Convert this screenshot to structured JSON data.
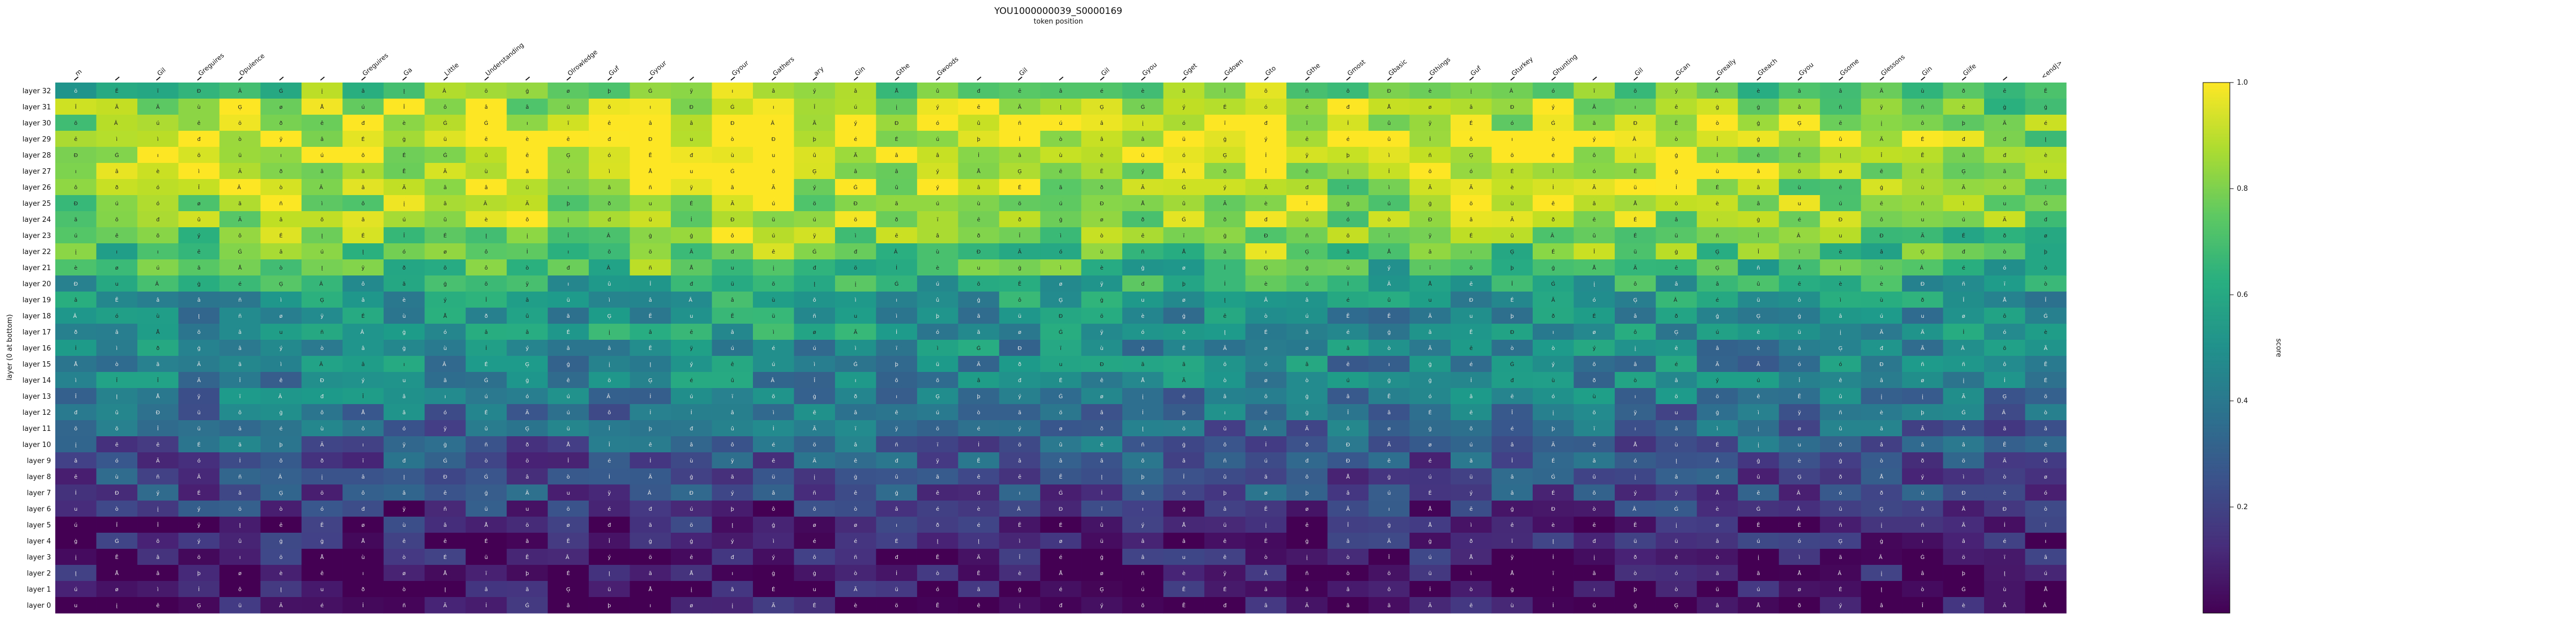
{
  "chart_data": {
    "type": "heatmap",
    "title": "YOU1000000039_S0000169",
    "xlabel": "token position",
    "ylabel": "layer (0 at bottom)",
    "colorbar": {
      "label": "score",
      "range": [
        0,
        1
      ],
      "ticks": [
        "0.2",
        "0.4",
        "0.6",
        "0.8",
        "1.0"
      ],
      "colormap": "viridis"
    },
    "x_tokens": [
      "▁m",
      "▁",
      "▁Gil",
      "▁Greguires",
      "▁Opulence",
      "▁",
      "▁",
      "▁Greguires",
      "▁Ga",
      "▁Little",
      "▁Understanding",
      "▁",
      "▁Olrowledge",
      "▁Guf",
      "▁Gyour",
      "▁",
      "▁Gyour",
      "▁Gathers",
      "▁ary",
      "▁Gin",
      "▁Gthe",
      "▁Gwoods",
      "▁",
      "▁Gil",
      "▁",
      "▁Gil",
      "▁Gyou",
      "▁Gget",
      "▁Gdown",
      "▁Gto",
      "▁Gthe",
      "▁Gmost",
      "▁Gbasic",
      "▁Gthings",
      "▁Guf",
      "▁Gturkey",
      "▁Ghunting",
      "▁",
      "▁Gil",
      "▁Gcan",
      "▁Greally",
      "▁Gteach",
      "▁Gyou",
      "▁Gsome",
      "▁Glessons",
      "▁Gin",
      "▁Glife",
      "▁",
      "<end|>"
    ],
    "y_labels": [
      "layer 32",
      "layer 31",
      "layer 30",
      "layer 29",
      "layer 28",
      "layer 27",
      "layer 26",
      "layer 25",
      "layer 24",
      "layer 23",
      "layer 22",
      "layer 21",
      "layer 20",
      "layer 19",
      "layer 18",
      "layer 17",
      "layer 16",
      "layer 15",
      "layer 14",
      "layer 13",
      "layer 12",
      "layer 11",
      "layer 10",
      "layer 9",
      "layer 8",
      "layer 7",
      "layer 6",
      "layer 5",
      "layer 4",
      "layer 3",
      "layer 2",
      "layer 1",
      "layer 0"
    ],
    "cell_texts": [
      "Ã",
      "â",
      "Ä",
      "Å",
      "Â ",
      "â",
      "ã",
      "â",
      "u",
      "â",
      "Î",
      "ì",
      "è",
      "é",
      "ê",
      "É",
      "ï",
      "ð",
      "ñ",
      "ò",
      "ó",
      "ô",
      "õ",
      "ö",
      "ø",
      "ù",
      "ú",
      "û",
      "ü",
      "ý",
      "þ",
      "ÿ",
      "Đ",
      "đ",
      "Ē",
      "ē",
      "Ġ",
      "ġ",
      "Ģ",
      "ģ",
      "Į",
      "į",
      "İ",
      "ı"
    ],
    "row_profile": [
      0.75,
      0.88,
      0.92,
      0.95,
      0.93,
      0.91,
      0.88,
      0.86,
      0.85,
      0.8,
      0.75,
      0.68,
      0.6,
      0.52,
      0.48,
      0.5,
      0.46,
      0.45,
      0.44,
      0.4,
      0.36,
      0.34,
      0.3,
      0.24,
      0.22,
      0.22,
      0.14,
      0.1,
      0.08,
      0.06,
      0.04,
      0.03,
      0.02
    ],
    "col_profile": [
      0.9,
      0.95,
      1.0,
      0.97,
      1.05,
      1.0,
      1.0,
      1.0,
      1.0,
      1.0,
      1.05,
      1.0,
      1.0,
      1.05,
      1.12,
      1.05,
      1.1,
      1.08,
      1.0,
      1.02,
      1.0,
      1.0,
      1.04,
      1.0,
      1.0,
      1.05,
      0.98,
      1.0,
      1.0,
      1.08,
      1.02,
      0.96,
      0.95,
      1.0,
      1.02,
      0.98,
      1.06,
      1.02,
      1.0,
      1.0,
      0.98,
      0.96,
      0.95,
      0.95,
      0.95,
      0.95,
      0.92,
      0.9,
      0.88
    ]
  }
}
